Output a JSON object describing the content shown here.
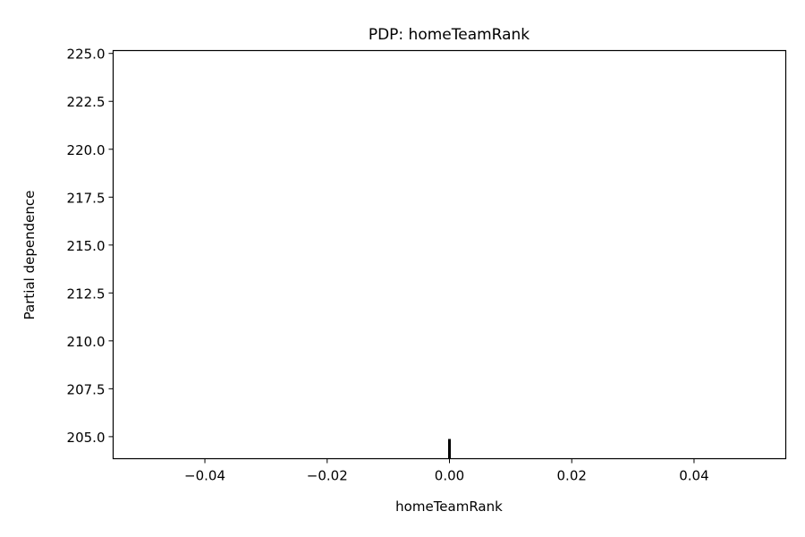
{
  "chart_data": {
    "type": "line",
    "title": "PDP: homeTeamRank",
    "xlabel": "homeTeamRank",
    "ylabel": "Partial dependence",
    "xlim": [
      -0.055,
      0.055
    ],
    "ylim": [
      203.85,
      225.15
    ],
    "xticks": [
      -0.04,
      -0.02,
      0.0,
      0.02,
      0.04
    ],
    "xtick_labels": [
      "−0.04",
      "−0.02",
      "0.00",
      "0.02",
      "0.04"
    ],
    "yticks": [
      205.0,
      207.5,
      210.0,
      212.5,
      215.0,
      217.5,
      220.0,
      222.5,
      225.0
    ],
    "ytick_labels": [
      "205.0",
      "207.5",
      "210.0",
      "212.5",
      "215.0",
      "217.5",
      "220.0",
      "222.5",
      "225.0"
    ],
    "series": [
      {
        "x": [
          0.0
        ],
        "y": [
          null
        ]
      }
    ],
    "rug": [
      0.0
    ],
    "grid": false,
    "legend": "none",
    "colors": {
      "axes": "#000000",
      "rug": "#000000",
      "background": "#ffffff"
    }
  }
}
